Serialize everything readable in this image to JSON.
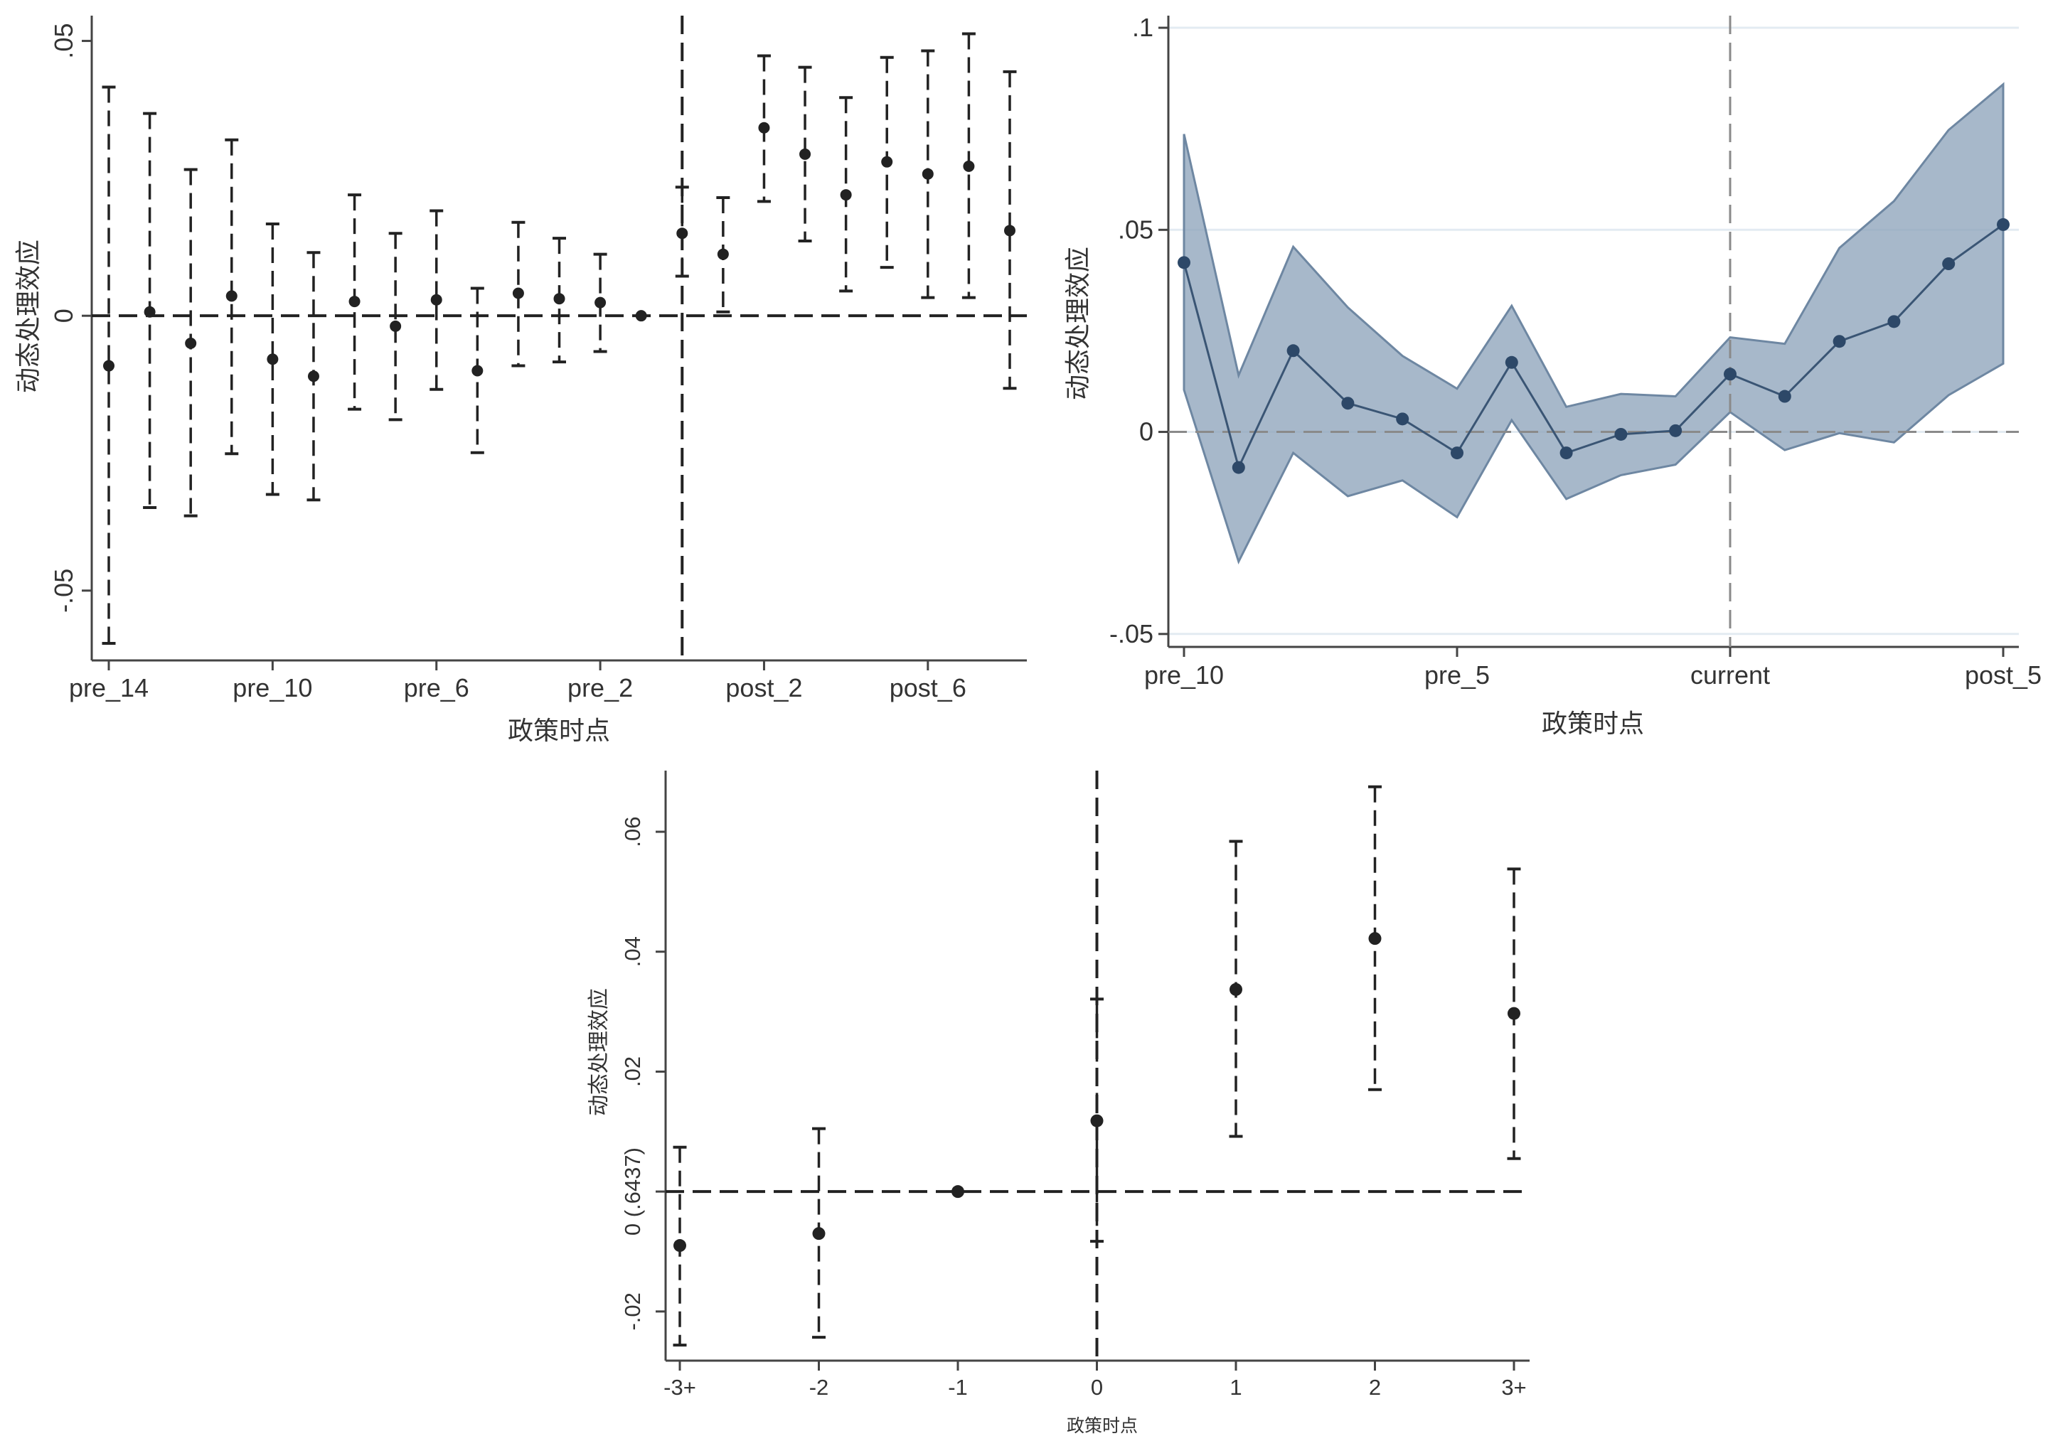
{
  "colors": {
    "ink": "#222222",
    "band_fill": "#8ea4bb",
    "band_edge": "#6e87a2",
    "line": "#3a5574",
    "dot": "#2d4868",
    "grid": "#e3ebf2",
    "ref": "#8a8a8a"
  },
  "chart_data": [
    {
      "type": "scatter",
      "style": "errorbar",
      "title": "",
      "xlabel": "政策时点",
      "ylabel": "动态处理效应",
      "categories": [
        "pre_14",
        "pre_13",
        "pre_12",
        "pre_11",
        "pre_10",
        "pre_9",
        "pre_8",
        "pre_7",
        "pre_6",
        "pre_5",
        "pre_4",
        "pre_3",
        "pre_2",
        "pre_1",
        "current",
        "post_1",
        "post_2",
        "post_3",
        "post_4",
        "post_5",
        "post_6",
        "post_7",
        "post_8"
      ],
      "x_tick_labels": [
        "pre_14",
        "pre_10",
        "pre_6",
        "pre_2",
        "post_2",
        "post_6"
      ],
      "y_ticks": [
        -0.05,
        0,
        0.05
      ],
      "y_tick_labels": [
        "-.05",
        "0",
        ".05"
      ],
      "ylim": [
        -0.0627,
        0.0546
      ],
      "vline_category": "current",
      "hline": 0,
      "grid": false,
      "values": [
        -0.0091,
        0.0007,
        -0.005,
        0.0036,
        -0.0079,
        -0.011,
        0.0026,
        -0.0019,
        0.0029,
        -0.01,
        0.0041,
        0.0031,
        0.0024,
        0,
        0.015,
        0.0112,
        0.0342,
        0.0294,
        0.022,
        0.028,
        0.0258,
        0.0272,
        0.0155
      ],
      "ci_upper": [
        0.0416,
        0.0368,
        0.0266,
        0.032,
        0.0167,
        0.0115,
        0.022,
        0.015,
        0.0191,
        0.005,
        0.017,
        0.0141,
        0.0112,
        null,
        0.0234,
        0.0215,
        0.0473,
        0.0452,
        0.0397,
        0.047,
        0.0482,
        0.0513,
        0.0444
      ],
      "ci_lower": [
        -0.0596,
        -0.0349,
        -0.0364,
        -0.0251,
        -0.0325,
        -0.0335,
        -0.017,
        -0.0189,
        -0.0134,
        -0.0249,
        -0.0091,
        -0.0084,
        -0.0065,
        null,
        0.0072,
        0.0007,
        0.0208,
        0.0136,
        0.0045,
        0.0088,
        0.0033,
        0.0033,
        -0.0132
      ]
    },
    {
      "type": "area",
      "style": "band",
      "title": "",
      "xlabel": "政策时点",
      "ylabel": "动态处理效应",
      "categories": [
        "pre_10",
        "pre_9",
        "pre_8",
        "pre_7",
        "pre_6",
        "pre_5",
        "pre_4",
        "pre_3",
        "pre_2",
        "pre_1",
        "current",
        "post_1",
        "post_2",
        "post_3",
        "post_4",
        "post_5"
      ],
      "x_tick_labels": [
        "pre_10",
        "pre_5",
        "current",
        "post_5"
      ],
      "y_ticks": [
        -0.05,
        0,
        0.05,
        0.1
      ],
      "y_tick_labels": [
        "-.05",
        "0",
        ".05",
        ".1"
      ],
      "ylim": [
        -0.0532,
        0.103
      ],
      "vline_category": "current",
      "hline": 0,
      "grid": true,
      "values": [
        0.0419,
        -0.0088,
        0.0201,
        0.0071,
        0.0032,
        -0.0052,
        0.0172,
        -0.0052,
        -0.0006,
        0.0003,
        0.0143,
        0.0088,
        0.0224,
        0.0273,
        0.0416,
        0.0513
      ],
      "ci_upper": [
        0.0737,
        0.014,
        0.0458,
        0.0308,
        0.0188,
        0.0107,
        0.0312,
        0.0062,
        0.0094,
        0.0088,
        0.0234,
        0.0218,
        0.0455,
        0.0571,
        0.0747,
        0.086
      ],
      "ci_lower": [
        0.0104,
        -0.0321,
        -0.0052,
        -0.0159,
        -0.012,
        -0.0211,
        0.0029,
        -0.0166,
        -0.0107,
        -0.0081,
        0.0049,
        -0.0045,
        -0.0003,
        -0.0026,
        0.0091,
        0.0169
      ]
    },
    {
      "type": "scatter",
      "style": "errorbar",
      "title": "",
      "xlabel": "政策时点",
      "ylabel": "动态处理效应",
      "categories": [
        "-3+",
        "-2",
        "-1",
        "0",
        "1",
        "2",
        "3+"
      ],
      "x_tick_labels": [
        "-3+",
        "-2",
        "-1",
        "0",
        "1",
        "2",
        "3+"
      ],
      "y_ticks": [
        -0.02,
        0,
        0.02,
        0.04,
        0.06
      ],
      "y_tick_labels": [
        "-.02",
        "0 (.6437)",
        ".02",
        ".04",
        ".06"
      ],
      "ylim": [
        -0.0282,
        0.0702
      ],
      "vline_category": "0",
      "hline": 0,
      "grid": false,
      "values": [
        -0.009,
        -0.007,
        0,
        0.0118,
        0.0337,
        0.0422,
        0.0297
      ],
      "ci_upper": [
        0.0074,
        0.0105,
        null,
        0.0321,
        0.0584,
        0.0675,
        0.0538
      ],
      "ci_lower": [
        -0.0256,
        -0.0243,
        null,
        -0.0083,
        0.0092,
        0.017,
        0.0055
      ]
    }
  ]
}
